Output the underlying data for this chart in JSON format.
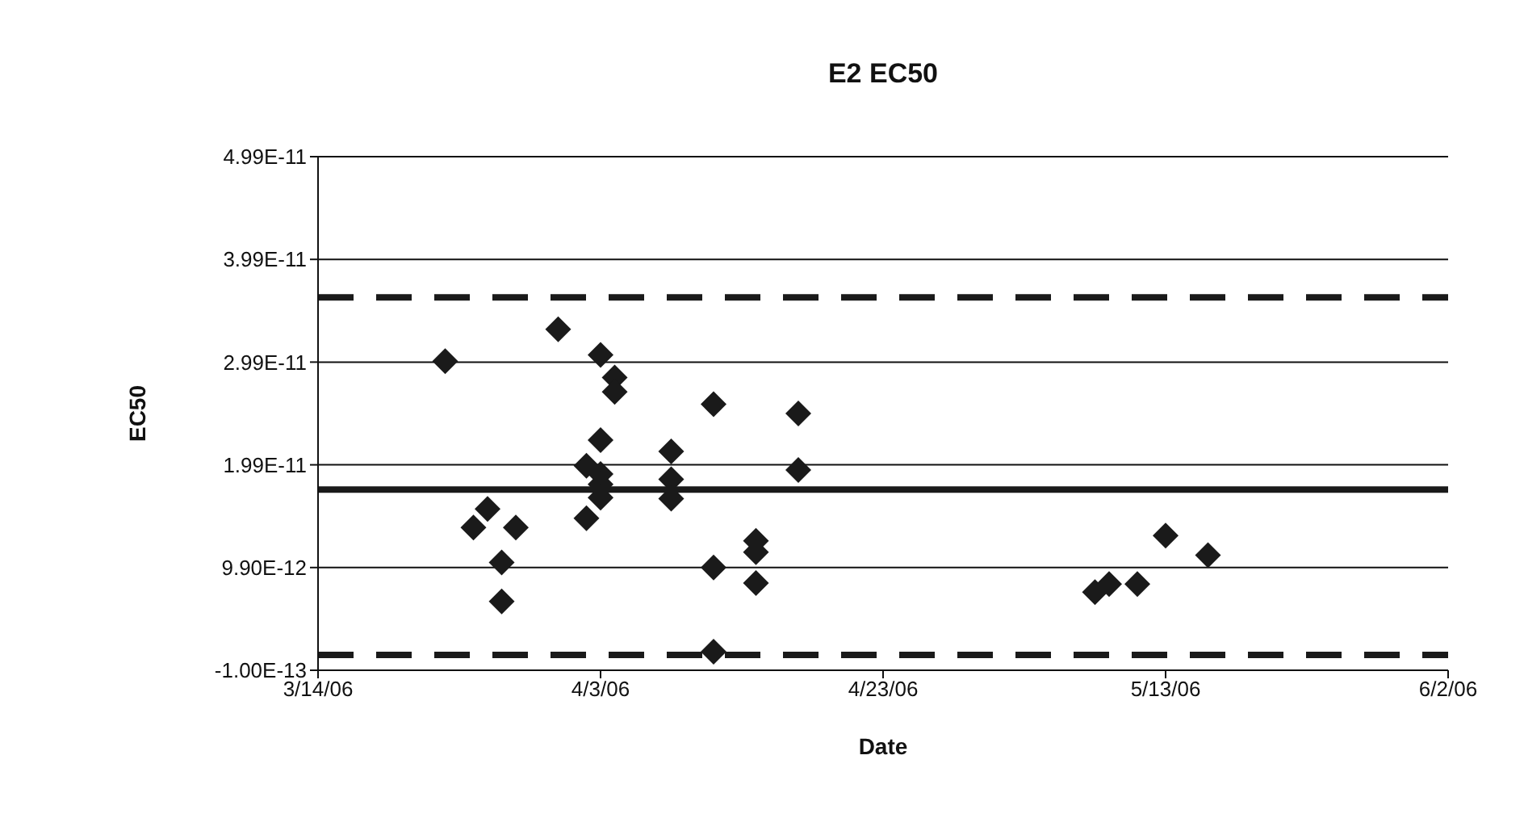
{
  "chart_data": {
    "type": "scatter",
    "title": "E2 EC50",
    "xlabel": "Date",
    "ylabel": "EC50",
    "x": [
      "2006-03-23",
      "2006-03-25",
      "2006-03-26",
      "2006-03-27",
      "2006-03-27",
      "2006-03-28",
      "2006-03-31",
      "2006-04-03",
      "2006-04-04",
      "2006-04-04",
      "2006-04-03",
      "2006-04-02",
      "2006-04-03",
      "2006-04-03",
      "2006-04-03",
      "2006-04-02",
      "2006-04-08",
      "2006-04-08",
      "2006-04-08",
      "2006-04-11",
      "2006-04-11",
      "2006-04-11",
      "2006-04-14",
      "2006-04-14",
      "2006-04-14",
      "2006-04-17",
      "2006-04-17",
      "2006-05-08",
      "2006-05-09",
      "2006-05-11",
      "2006-05-13",
      "2006-05-16"
    ],
    "series": [
      {
        "color": "#1a1a1a",
        "values": [
          3e-11,
          1.38e-11,
          1.56e-11,
          1.04e-11,
          6.6e-12,
          1.38e-11,
          3.31e-11,
          3.06e-11,
          2.84e-11,
          2.7e-11,
          2.23e-11,
          1.98e-11,
          1.9e-11,
          1.8e-11,
          1.67e-11,
          1.47e-11,
          2.12e-11,
          1.85e-11,
          1.66e-11,
          2.58e-11,
          9.9e-12,
          1.7e-12,
          1.25e-11,
          1.14e-11,
          8.4e-12,
          2.49e-11,
          1.94e-11,
          7.5e-12,
          8.3e-12,
          8.3e-12,
          1.3e-11,
          1.11e-11
        ]
      }
    ],
    "marker": "diamond",
    "ylim": [
      -1e-13,
      4.99e-11
    ],
    "yticks": [
      {
        "value": -1e-13,
        "label": "-1.00E-13"
      },
      {
        "value": 9.9e-12,
        "label": "9.90E-12"
      },
      {
        "value": 1.99e-11,
        "label": "1.99E-11"
      },
      {
        "value": 2.99e-11,
        "label": "2.99E-11"
      },
      {
        "value": 3.99e-11,
        "label": "3.99E-11"
      },
      {
        "value": 4.99e-11,
        "label": "4.99E-11"
      }
    ],
    "xlim": [
      "2006-03-14",
      "2006-06-02"
    ],
    "xticks": [
      {
        "value": "2006-03-14",
        "label": "3/14/06"
      },
      {
        "value": "2006-04-03",
        "label": "4/3/06"
      },
      {
        "value": "2006-04-23",
        "label": "4/23/06"
      },
      {
        "value": "2006-05-13",
        "label": "5/13/06"
      },
      {
        "value": "2006-06-02",
        "label": "6/2/06"
      }
    ],
    "grid": "y",
    "legend": false,
    "ref_lines": [
      {
        "axis": "y",
        "value": 3.62e-11,
        "color": "#1a1a1a",
        "line_style": "dashed"
      },
      {
        "axis": "y",
        "value": 1.75e-11,
        "color": "#1a1a1a",
        "line_style": "solid"
      },
      {
        "axis": "y",
        "value": 1.4e-12,
        "color": "#1a1a1a",
        "line_style": "dashed"
      }
    ]
  }
}
